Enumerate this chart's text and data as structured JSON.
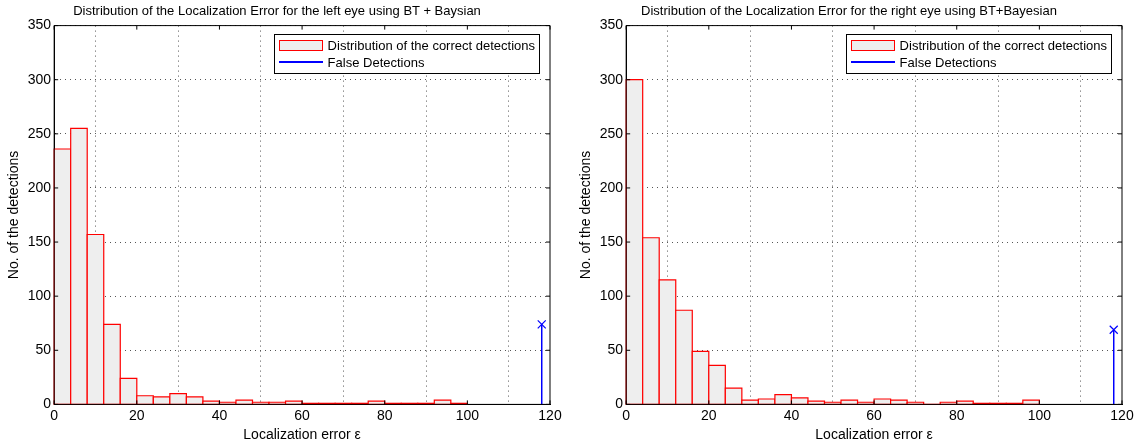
{
  "chart_data": [
    {
      "type": "histogram",
      "title": "Distribution of the Localization Error for the left eye using BT + Baysian",
      "xlabel": "Localization error ε",
      "ylabel": "No. of the detections",
      "bins": [
        0,
        4,
        8,
        12,
        16,
        20,
        24,
        28,
        32,
        36,
        40,
        44,
        48,
        52,
        56,
        60,
        64,
        68,
        72,
        76,
        80,
        84,
        88,
        92,
        96,
        100
      ],
      "series": [
        {
          "name": "Distribution of the correct detections",
          "type": "histogram",
          "color": "#ff0000",
          "values": [
            236,
            255,
            157,
            74,
            24,
            8,
            7,
            10,
            7,
            3,
            2,
            4,
            2,
            2,
            3,
            1,
            1,
            1,
            1,
            3,
            1,
            1,
            1,
            4,
            1
          ]
        },
        {
          "name": "False Detections",
          "type": "lollipop",
          "color": "#0000ff",
          "marker": "cross",
          "x": [
            118
          ],
          "values": [
            74
          ]
        }
      ],
      "xlim": [
        0,
        120
      ],
      "xticks": [
        0,
        20,
        40,
        60,
        80,
        100,
        120
      ],
      "ylim": [
        0,
        350
      ],
      "yticks": [
        0,
        50,
        100,
        150,
        200,
        250,
        300,
        350
      ],
      "grid": true,
      "legend": "top right"
    },
    {
      "type": "histogram",
      "title": "Distribution of the Localization Error for the right eye using BT+Bayesian",
      "xlabel": "Localization error ε",
      "ylabel": "No. of the detections",
      "bins": [
        0,
        4,
        8,
        12,
        16,
        20,
        24,
        28,
        32,
        36,
        40,
        44,
        48,
        52,
        56,
        60,
        64,
        68,
        72,
        76,
        80,
        84,
        88,
        92,
        96,
        100
      ],
      "series": [
        {
          "name": "Distribution of the correct detections",
          "type": "histogram",
          "color": "#ff0000",
          "values": [
            300,
            154,
            115,
            87,
            49,
            36,
            15,
            4,
            5,
            9,
            6,
            3,
            2,
            4,
            2,
            5,
            4,
            2,
            0,
            2,
            3,
            1,
            1,
            1,
            4
          ]
        },
        {
          "name": "False Detections",
          "type": "lollipop",
          "color": "#0000ff",
          "marker": "cross",
          "x": [
            118
          ],
          "values": [
            69
          ]
        }
      ],
      "xlim": [
        0,
        120
      ],
      "xticks": [
        0,
        20,
        40,
        60,
        80,
        100,
        120
      ],
      "ylim": [
        0,
        350
      ],
      "yticks": [
        0,
        50,
        100,
        150,
        200,
        250,
        300,
        350
      ],
      "grid": true,
      "legend": "top right"
    }
  ]
}
